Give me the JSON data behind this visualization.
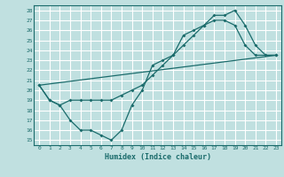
{
  "xlabel": "Humidex (Indice chaleur)",
  "bg_color": "#c0e0e0",
  "grid_color": "#ffffff",
  "line_color": "#1a6b6b",
  "xlim": [
    -0.5,
    23.5
  ],
  "ylim": [
    14.5,
    28.5
  ],
  "yticks": [
    15,
    16,
    17,
    18,
    19,
    20,
    21,
    22,
    23,
    24,
    25,
    26,
    27,
    28
  ],
  "xticks": [
    0,
    1,
    2,
    3,
    4,
    5,
    6,
    7,
    8,
    9,
    10,
    11,
    12,
    13,
    14,
    15,
    16,
    17,
    18,
    19,
    20,
    21,
    22,
    23
  ],
  "series1_x": [
    0,
    1,
    2,
    3,
    4,
    5,
    6,
    7,
    8,
    9,
    10,
    11,
    12,
    13,
    14,
    15,
    16,
    17,
    18,
    19,
    20,
    21,
    22,
    23
  ],
  "series1_y": [
    20.5,
    19.0,
    18.5,
    19.0,
    19.0,
    19.0,
    19.0,
    19.0,
    19.5,
    20.0,
    20.5,
    21.5,
    22.5,
    23.5,
    24.5,
    25.5,
    26.5,
    27.5,
    27.5,
    28.0,
    26.5,
    24.5,
    23.5,
    23.5
  ],
  "series2_x": [
    0,
    1,
    2,
    3,
    4,
    5,
    6,
    7,
    8,
    9,
    10,
    11,
    12,
    13,
    14,
    15,
    16,
    17,
    18,
    19,
    20,
    21,
    22,
    23
  ],
  "series2_y": [
    20.5,
    19.0,
    18.5,
    17.0,
    16.0,
    16.0,
    15.5,
    15.0,
    16.0,
    18.5,
    20.0,
    22.5,
    23.0,
    23.5,
    25.5,
    26.0,
    26.5,
    27.0,
    27.0,
    26.5,
    24.5,
    23.5,
    23.5,
    23.5
  ],
  "series3_x": [
    0,
    23
  ],
  "series3_y": [
    20.5,
    23.5
  ]
}
